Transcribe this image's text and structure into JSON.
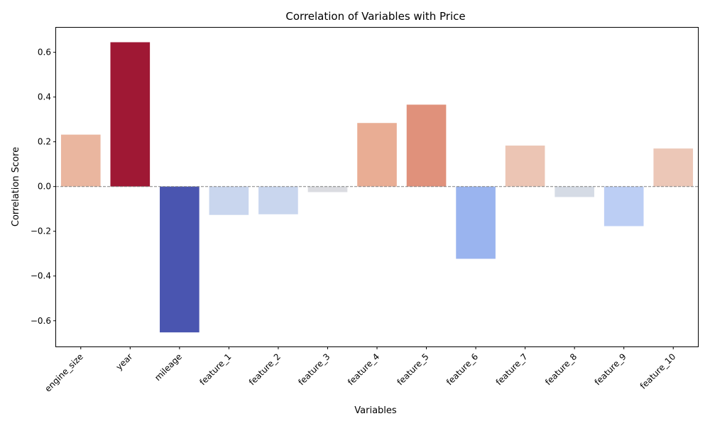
{
  "chart_data": {
    "type": "bar",
    "title": "Correlation of Variables with Price",
    "xlabel": "Variables",
    "ylabel": "Correlation Score",
    "categories": [
      "engine_size",
      "year",
      "mileage",
      "feature_1",
      "feature_2",
      "feature_3",
      "feature_4",
      "feature_5",
      "feature_6",
      "feature_7",
      "feature_8",
      "feature_9",
      "feature_10"
    ],
    "values": [
      0.232,
      0.645,
      -0.652,
      -0.127,
      -0.124,
      -0.025,
      0.284,
      0.366,
      -0.323,
      0.183,
      -0.047,
      -0.177,
      0.17
    ],
    "bar_colors": [
      "#eab69f",
      "#9f1834",
      "#4a55b0",
      "#c9d6ee",
      "#c9d6ee",
      "#dbdce1",
      "#e9ad94",
      "#e0917b",
      "#9ab4ef",
      "#ecc5b4",
      "#d5dbe5",
      "#bccef4",
      "#ecc7b7"
    ],
    "ylim": [
      -0.715,
      0.71
    ],
    "yticks": [
      -0.6,
      -0.4,
      -0.2,
      0.0,
      0.2,
      0.4,
      0.6
    ],
    "ytick_labels": [
      "−0.6",
      "−0.4",
      "−0.2",
      "0.0",
      "0.2",
      "0.4",
      "0.6"
    ],
    "zero_line": {
      "value": 0,
      "style": "dashed",
      "color": "#808080"
    },
    "grid": false,
    "legend": "none"
  }
}
